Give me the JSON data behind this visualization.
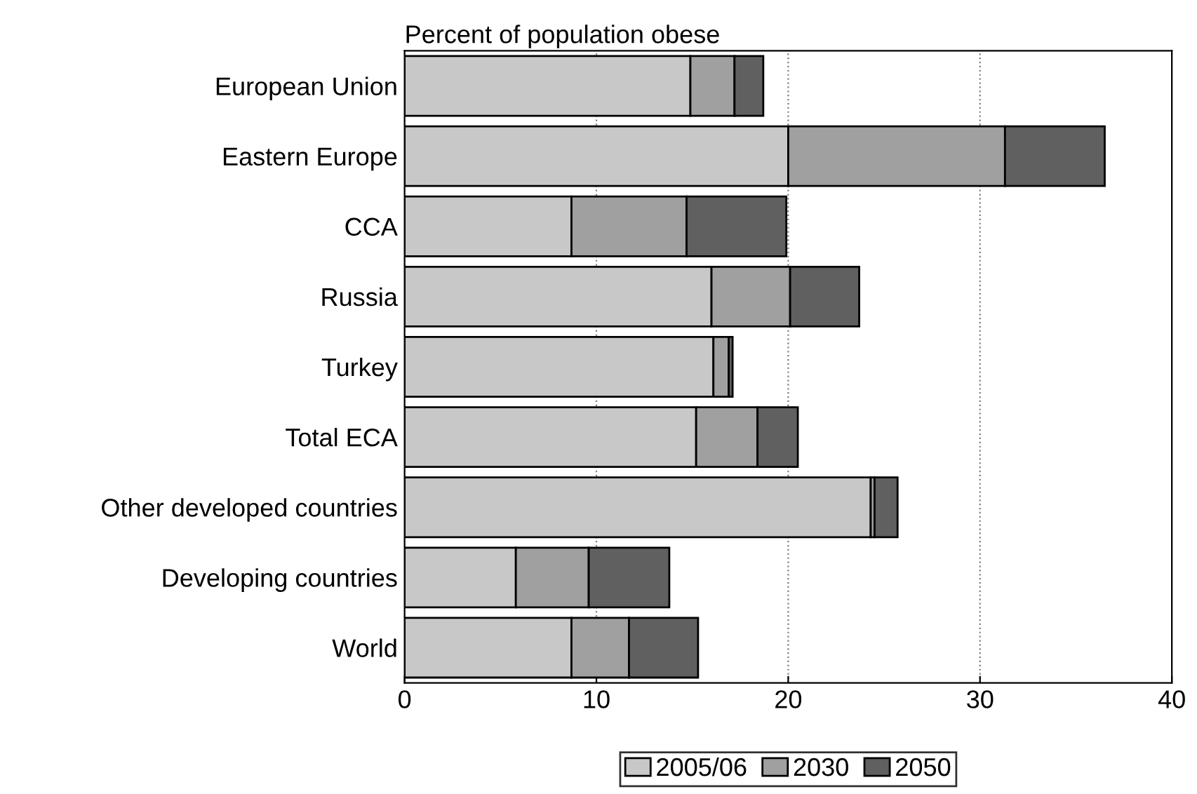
{
  "chart_data": {
    "type": "bar",
    "orientation": "horizontal",
    "stacked": true,
    "title": "Percent of population obese",
    "categories": [
      "European Union",
      "Eastern Europe",
      "CCA",
      "Russia",
      "Turkey",
      "Total ECA",
      "Other developed countries",
      "Developing countries",
      "World"
    ],
    "series": [
      {
        "name": "2005/06",
        "color": "#c8c8c8",
        "values": [
          14.9,
          20.0,
          8.7,
          16.0,
          16.1,
          15.2,
          24.3,
          5.8,
          8.7
        ]
      },
      {
        "name": "2030",
        "color": "#a0a0a0",
        "values": [
          2.3,
          11.3,
          6.0,
          4.1,
          0.8,
          3.2,
          0.2,
          3.8,
          3.0
        ]
      },
      {
        "name": "2050",
        "color": "#606060",
        "values": [
          1.5,
          5.2,
          5.2,
          3.6,
          0.2,
          2.1,
          1.2,
          4.2,
          3.6
        ]
      }
    ],
    "xlim": [
      0,
      40
    ],
    "xticks": [
      0,
      10,
      20,
      30,
      40
    ],
    "grid": "x",
    "legend": "bottom"
  }
}
